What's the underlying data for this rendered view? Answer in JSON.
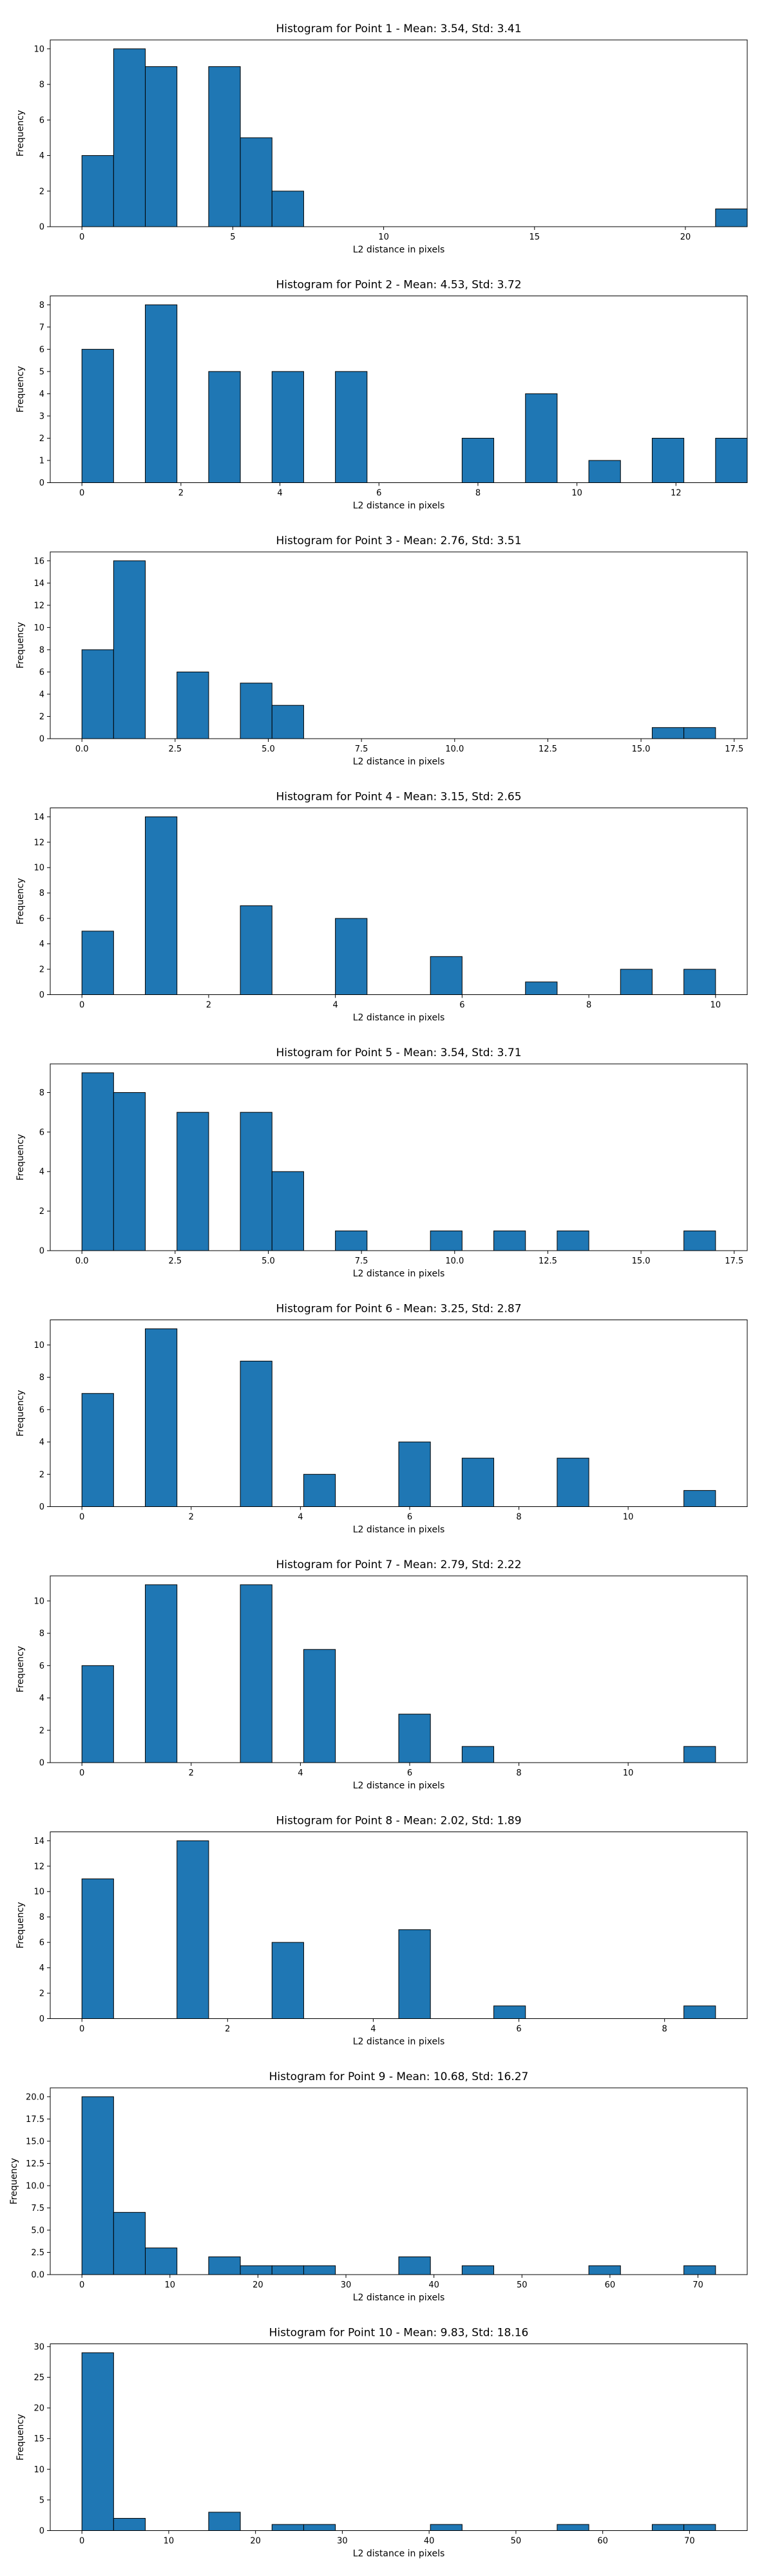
{
  "figure": {
    "background": "#ffffff",
    "bar_color": "#1f77b4",
    "edge_color": "#000000"
  },
  "chart_data": [
    {
      "type": "bar",
      "title": "Histogram for Point 1 - Mean: 3.54, Std: 3.41",
      "xlabel": "L2 distance in pixels",
      "ylabel": "Frequency",
      "xlim": [
        -1.05,
        22.05
      ],
      "ylim": [
        0,
        10.5
      ],
      "xticks": [
        0,
        5,
        10,
        15,
        20
      ],
      "yticks": [
        0,
        2,
        4,
        6,
        8,
        10
      ],
      "bins": {
        "start": 0,
        "width": 1.05
      },
      "counts": [
        4,
        10,
        9,
        0,
        9,
        5,
        2,
        0,
        0,
        0,
        0,
        0,
        0,
        0,
        0,
        0,
        0,
        0,
        0,
        0,
        1
      ]
    },
    {
      "type": "bar",
      "title": "Histogram for Point 2 - Mean: 4.53, Std: 3.72",
      "xlabel": "L2 distance in pixels",
      "ylabel": "Frequency",
      "xlim": [
        -0.64,
        13.44
      ],
      "ylim": [
        0,
        8.4
      ],
      "xticks": [
        0,
        2,
        4,
        6,
        8,
        10,
        12
      ],
      "yticks": [
        0,
        1,
        2,
        3,
        4,
        5,
        6,
        7,
        8
      ],
      "bins": {
        "start": 0,
        "width": 0.64
      },
      "counts": [
        6,
        0,
        8,
        0,
        5,
        0,
        5,
        0,
        5,
        0,
        0,
        0,
        2,
        0,
        4,
        0,
        1,
        0,
        2,
        0,
        2
      ]
    },
    {
      "type": "bar",
      "title": "Histogram for Point 3 - Mean: 2.76, Std: 3.51",
      "xlabel": "L2 distance in pixels",
      "ylabel": "Frequency",
      "xlim": [
        -0.85,
        17.85
      ],
      "ylim": [
        0,
        16.8
      ],
      "xticks": [
        0.0,
        2.5,
        5.0,
        7.5,
        10.0,
        12.5,
        15.0,
        17.5
      ],
      "yticks": [
        0,
        2,
        4,
        6,
        8,
        10,
        12,
        14,
        16
      ],
      "bins": {
        "start": 0,
        "width": 0.85
      },
      "counts": [
        8,
        16,
        0,
        6,
        0,
        5,
        3,
        0,
        0,
        0,
        0,
        0,
        0,
        0,
        0,
        0,
        0,
        0,
        1,
        1
      ]
    },
    {
      "type": "bar",
      "title": "Histogram for Point 4 - Mean: 3.15, Std: 2.65",
      "xlabel": "L2 distance in pixels",
      "ylabel": "Frequency",
      "xlim": [
        -0.5,
        10.5
      ],
      "ylim": [
        0,
        14.7
      ],
      "xticks": [
        0,
        2,
        4,
        6,
        8,
        10
      ],
      "yticks": [
        0,
        2,
        4,
        6,
        8,
        10,
        12,
        14
      ],
      "bins": {
        "start": 0,
        "width": 0.5
      },
      "counts": [
        5,
        0,
        14,
        0,
        0,
        7,
        0,
        0,
        6,
        0,
        0,
        3,
        0,
        0,
        1,
        0,
        0,
        2,
        0,
        2
      ]
    },
    {
      "type": "bar",
      "title": "Histogram for Point 5 - Mean: 3.54, Std: 3.71",
      "xlabel": "L2 distance in pixels",
      "ylabel": "Frequency",
      "xlim": [
        -0.85,
        17.85
      ],
      "ylim": [
        0,
        9.45
      ],
      "xticks": [
        0.0,
        2.5,
        5.0,
        7.5,
        10.0,
        12.5,
        15.0,
        17.5
      ],
      "yticks": [
        0,
        2,
        4,
        6,
        8
      ],
      "bins": {
        "start": 0,
        "width": 0.85
      },
      "counts": [
        9,
        8,
        0,
        7,
        0,
        7,
        4,
        0,
        1,
        0,
        0,
        1,
        0,
        1,
        0,
        1,
        0,
        0,
        0,
        1
      ]
    },
    {
      "type": "bar",
      "title": "Histogram for Point 6 - Mean: 3.25, Std: 2.87",
      "xlabel": "L2 distance in pixels",
      "ylabel": "Frequency",
      "xlim": [
        -0.58,
        12.18
      ],
      "ylim": [
        0,
        11.55
      ],
      "xticks": [
        0,
        2,
        4,
        6,
        8,
        10
      ],
      "yticks": [
        0,
        2,
        4,
        6,
        8,
        10
      ],
      "bins": {
        "start": 0,
        "width": 0.58
      },
      "counts": [
        7,
        0,
        11,
        0,
        0,
        9,
        0,
        2,
        0,
        0,
        4,
        0,
        3,
        0,
        0,
        3,
        0,
        0,
        0,
        1
      ]
    },
    {
      "type": "bar",
      "title": "Histogram for Point 7 - Mean: 2.79, Std: 2.22",
      "xlabel": "L2 distance in pixels",
      "ylabel": "Frequency",
      "xlim": [
        -0.58,
        12.18
      ],
      "ylim": [
        0,
        11.55
      ],
      "xticks": [
        0,
        2,
        4,
        6,
        8,
        10
      ],
      "yticks": [
        0,
        2,
        4,
        6,
        8,
        10
      ],
      "bins": {
        "start": 0,
        "width": 0.58
      },
      "counts": [
        6,
        0,
        11,
        0,
        0,
        11,
        0,
        7,
        0,
        0,
        3,
        0,
        1,
        0,
        0,
        0,
        0,
        0,
        0,
        1
      ]
    },
    {
      "type": "bar",
      "title": "Histogram for Point 8 - Mean: 2.02, Std: 1.89",
      "xlabel": "L2 distance in pixels",
      "ylabel": "Frequency",
      "xlim": [
        -0.435,
        9.135
      ],
      "ylim": [
        0,
        14.7
      ],
      "xticks": [
        0,
        2,
        4,
        6,
        8
      ],
      "yticks": [
        0,
        2,
        4,
        6,
        8,
        10,
        12,
        14
      ],
      "bins": {
        "start": 0,
        "width": 0.435
      },
      "counts": [
        11,
        0,
        0,
        14,
        0,
        0,
        6,
        0,
        0,
        0,
        7,
        0,
        0,
        1,
        0,
        0,
        0,
        0,
        0,
        1
      ]
    },
    {
      "type": "bar",
      "title": "Histogram for Point 9 - Mean: 10.68, Std: 16.27",
      "xlabel": "L2 distance in pixels",
      "ylabel": "Frequency",
      "xlim": [
        -3.6,
        75.6
      ],
      "ylim": [
        0,
        21
      ],
      "xticks": [
        0,
        10,
        20,
        30,
        40,
        50,
        60,
        70
      ],
      "yticks": [
        0.0,
        2.5,
        5.0,
        7.5,
        10.0,
        12.5,
        15.0,
        17.5,
        20.0
      ],
      "bins": {
        "start": 0,
        "width": 3.6
      },
      "counts": [
        20,
        7,
        3,
        0,
        2,
        1,
        1,
        1,
        0,
        0,
        2,
        0,
        1,
        0,
        0,
        0,
        1,
        0,
        0,
        1
      ]
    },
    {
      "type": "bar",
      "title": "Histogram for Point 10 - Mean: 9.83, Std: 18.16",
      "xlabel": "L2 distance in pixels",
      "ylabel": "Frequency",
      "xlim": [
        -3.65,
        76.65
      ],
      "ylim": [
        0,
        30.45
      ],
      "xticks": [
        0,
        10,
        20,
        30,
        40,
        50,
        60,
        70
      ],
      "yticks": [
        0,
        5,
        10,
        15,
        20,
        25,
        30
      ],
      "bins": {
        "start": 0,
        "width": 3.65
      },
      "counts": [
        29,
        2,
        0,
        0,
        3,
        0,
        1,
        1,
        0,
        0,
        0,
        1,
        0,
        0,
        0,
        1,
        0,
        0,
        1,
        1
      ]
    }
  ]
}
